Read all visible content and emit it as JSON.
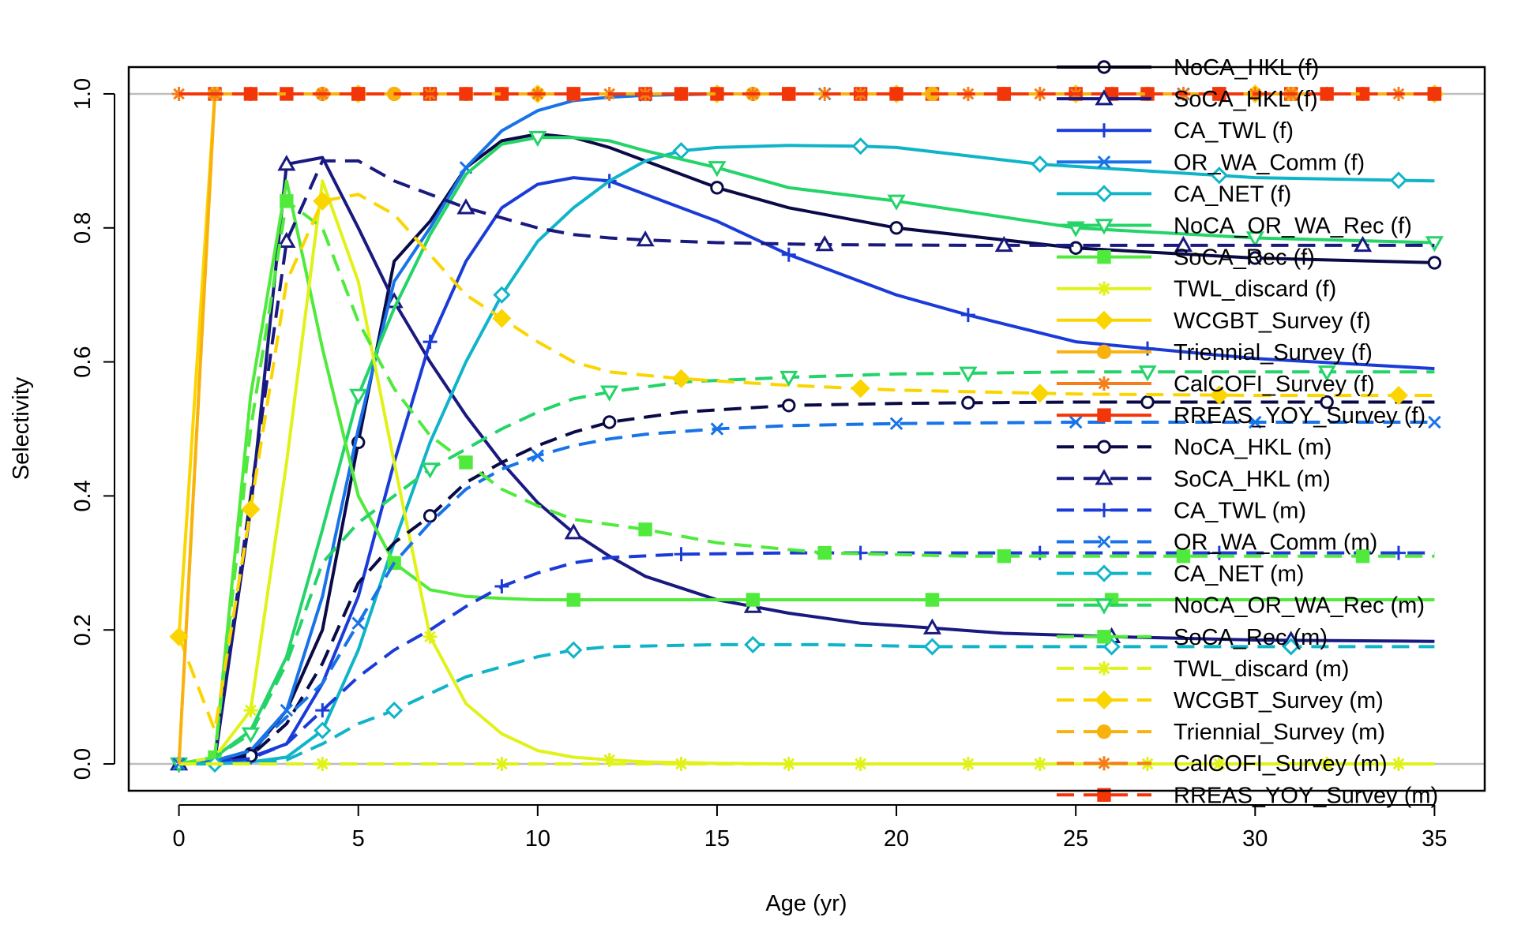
{
  "chart_data": {
    "type": "line",
    "xlabel": "Age (yr)",
    "ylabel": "Selectivity",
    "xlim": [
      -1.4,
      36.4
    ],
    "ylim": [
      -0.04,
      1.04
    ],
    "x_ticks": [
      0,
      5,
      10,
      15,
      20,
      25,
      30,
      35
    ],
    "y_ticks": [
      0.0,
      0.2,
      0.4,
      0.6,
      0.8,
      1.0
    ],
    "reference_lines": [
      0,
      1
    ],
    "legend_position": "top-right",
    "series": [
      {
        "name": "NoCA_HKL (f)",
        "color": "#0a0a46",
        "dash": false,
        "marker": "circle-open",
        "x": [
          0,
          1,
          2,
          3,
          4,
          5,
          6,
          7,
          8,
          9,
          10,
          11,
          12,
          13,
          15,
          17,
          20,
          25,
          30,
          35
        ],
        "y": [
          0,
          0.005,
          0.015,
          0.08,
          0.2,
          0.48,
          0.75,
          0.81,
          0.89,
          0.93,
          0.94,
          0.935,
          0.92,
          0.9,
          0.86,
          0.83,
          0.8,
          0.77,
          0.755,
          0.748
        ],
        "markers_at": [
          2,
          5,
          15,
          20,
          25,
          30,
          35
        ]
      },
      {
        "name": "SoCA_HKL (f)",
        "color": "#191980",
        "dash": false,
        "marker": "triangle-open",
        "x": [
          0,
          1,
          2,
          3,
          4,
          5,
          6,
          7,
          8,
          9,
          10,
          11,
          12,
          13,
          15,
          17,
          19,
          21,
          23,
          26,
          30,
          35
        ],
        "y": [
          0,
          0.005,
          0.38,
          0.895,
          0.905,
          0.8,
          0.69,
          0.6,
          0.52,
          0.45,
          0.39,
          0.345,
          0.31,
          0.28,
          0.245,
          0.225,
          0.21,
          0.203,
          0.195,
          0.19,
          0.185,
          0.183
        ],
        "markers_at": [
          0,
          3,
          6,
          11,
          16,
          21,
          26,
          31
        ]
      },
      {
        "name": "CA_TWL (f)",
        "color": "#1a3bd8",
        "dash": false,
        "marker": "plus",
        "x": [
          0,
          1,
          2,
          3,
          4,
          5,
          6,
          7,
          8,
          9,
          10,
          11,
          12,
          13,
          15,
          17,
          20,
          22,
          25,
          30,
          35
        ],
        "y": [
          0,
          0.003,
          0.01,
          0.03,
          0.12,
          0.25,
          0.45,
          0.63,
          0.75,
          0.83,
          0.865,
          0.875,
          0.87,
          0.85,
          0.81,
          0.76,
          0.7,
          0.67,
          0.63,
          0.605,
          0.59
        ],
        "markers_at": [
          2,
          7,
          12,
          17,
          22,
          27
        ]
      },
      {
        "name": "OR_WA_Comm (f)",
        "color": "#1873e8",
        "dash": false,
        "marker": "cross",
        "x": [
          0,
          1,
          2,
          3,
          4,
          5,
          6,
          7,
          8,
          9,
          10,
          11,
          12,
          13,
          15,
          17,
          20,
          25,
          30,
          35
        ],
        "y": [
          0,
          0.005,
          0.02,
          0.08,
          0.25,
          0.5,
          0.72,
          0.8,
          0.89,
          0.945,
          0.975,
          0.99,
          0.995,
          0.998,
          1,
          1,
          1,
          1,
          1,
          1
        ],
        "markers_at": [
          0,
          3,
          8,
          13,
          18,
          23,
          28,
          33
        ]
      },
      {
        "name": "CA_NET (f)",
        "color": "#10b4c9",
        "dash": false,
        "marker": "diamond-open",
        "x": [
          0,
          1,
          2,
          3,
          4,
          5,
          6,
          7,
          8,
          9,
          10,
          11,
          12,
          13,
          14,
          15,
          17,
          19,
          20,
          24,
          30,
          35
        ],
        "y": [
          0,
          0,
          0.003,
          0.01,
          0.05,
          0.17,
          0.33,
          0.48,
          0.6,
          0.7,
          0.78,
          0.83,
          0.87,
          0.9,
          0.915,
          0.92,
          0.923,
          0.922,
          0.92,
          0.895,
          0.875,
          0.87
        ],
        "markers_at": [
          4,
          9,
          14,
          19,
          24,
          29,
          34
        ]
      },
      {
        "name": "NoCA_OR_WA_Rec (f)",
        "color": "#24d468",
        "dash": false,
        "marker": "triangle-down-open",
        "x": [
          0,
          1,
          2,
          3,
          4,
          5,
          6,
          7,
          8,
          9,
          10,
          11,
          12,
          13,
          15,
          17,
          20,
          25,
          30,
          35
        ],
        "y": [
          0,
          0.01,
          0.05,
          0.16,
          0.35,
          0.55,
          0.68,
          0.79,
          0.88,
          0.925,
          0.935,
          0.935,
          0.93,
          0.915,
          0.89,
          0.86,
          0.84,
          0.8,
          0.785,
          0.778
        ],
        "markers_at": [
          0,
          5,
          10,
          15,
          20,
          25,
          30,
          35
        ]
      },
      {
        "name": "SoCA_Rec (f)",
        "color": "#50ea3c",
        "dash": false,
        "marker": "square",
        "x": [
          0,
          1,
          2,
          3,
          4,
          5,
          6,
          7,
          8,
          9,
          10,
          11,
          15,
          20,
          25,
          30,
          35
        ],
        "y": [
          0,
          0.01,
          0.55,
          0.87,
          0.62,
          0.4,
          0.3,
          0.26,
          0.25,
          0.247,
          0.245,
          0.245,
          0.245,
          0.245,
          0.245,
          0.245,
          0.245
        ],
        "markers_at": [
          1,
          6,
          11,
          16,
          21,
          26
        ]
      },
      {
        "name": "TWL_discard (f)",
        "color": "#e0f218",
        "dash": false,
        "marker": "asterisk",
        "x": [
          0,
          1,
          2,
          3,
          4,
          5,
          6,
          7,
          8,
          9,
          10,
          11,
          12,
          13,
          15,
          17,
          20,
          25,
          30,
          35
        ],
        "y": [
          0,
          0.01,
          0.08,
          0.45,
          0.87,
          0.72,
          0.45,
          0.19,
          0.09,
          0.045,
          0.02,
          0.01,
          0.006,
          0.003,
          0.001,
          0,
          0,
          0,
          0,
          0
        ],
        "markers_at": [
          2,
          7,
          12,
          17,
          22,
          27,
          32
        ]
      },
      {
        "name": "WCGBT_Survey (f)",
        "color": "#fbd500",
        "dash": false,
        "marker": "diamond",
        "x": [
          0,
          1,
          35
        ],
        "y": [
          0.19,
          1,
          1
        ],
        "markers_at": [
          0,
          5,
          10,
          15,
          20,
          25,
          30,
          35
        ]
      },
      {
        "name": "Triennial_Survey (f)",
        "color": "#f9b10e",
        "dash": false,
        "marker": "circle",
        "x": [
          0,
          1,
          35
        ],
        "y": [
          0,
          1,
          1
        ],
        "markers_at": [
          1,
          4,
          7,
          9,
          11,
          13,
          15,
          17,
          19,
          21,
          23,
          25,
          27,
          29,
          31,
          33
        ]
      },
      {
        "name": "CalCOFI_Survey (f)",
        "color": "#f57e1a",
        "dash": false,
        "marker": "star",
        "x": [
          0,
          1,
          35
        ],
        "y": [
          1,
          1,
          1
        ],
        "markers_at": [
          0,
          2,
          4,
          6,
          8,
          10,
          12,
          14,
          16,
          18,
          20,
          22,
          24,
          26,
          28,
          30,
          32,
          34
        ]
      },
      {
        "name": "RREAS_YOY_Survey (f)",
        "color": "#f2360a",
        "dash": false,
        "marker": "square",
        "x": [
          0,
          1,
          35
        ],
        "y": [
          1,
          1,
          1
        ],
        "markers_at": [
          1,
          3,
          5,
          7,
          9,
          11,
          13,
          15,
          17,
          19,
          21,
          23,
          25,
          27,
          29,
          31,
          33,
          35
        ]
      },
      {
        "name": "NoCA_HKL (m)",
        "color": "#0a0a46",
        "dash": true,
        "marker": "circle-open",
        "x": [
          0,
          1,
          2,
          3,
          4,
          5,
          6,
          7,
          8,
          9,
          10,
          11,
          12,
          14,
          17,
          20,
          22,
          25,
          30,
          35
        ],
        "y": [
          0,
          0.004,
          0.012,
          0.06,
          0.15,
          0.27,
          0.33,
          0.37,
          0.42,
          0.45,
          0.475,
          0.495,
          0.51,
          0.525,
          0.535,
          0.538,
          0.539,
          0.54,
          0.54,
          0.54
        ],
        "markers_at": [
          2,
          7,
          12,
          17,
          22,
          27,
          32
        ]
      },
      {
        "name": "SoCA_HKL (m)",
        "color": "#191980",
        "dash": true,
        "marker": "triangle-open",
        "x": [
          0,
          1,
          2,
          3,
          4,
          5,
          6,
          7,
          8,
          9,
          10,
          11,
          12,
          13,
          15,
          18,
          22,
          25,
          30,
          35
        ],
        "y": [
          0,
          0.005,
          0.4,
          0.78,
          0.9,
          0.9,
          0.87,
          0.85,
          0.83,
          0.815,
          0.8,
          0.79,
          0.785,
          0.782,
          0.778,
          0.775,
          0.774,
          0.774,
          0.774,
          0.774
        ],
        "markers_at": [
          3,
          8,
          13,
          18,
          23,
          28,
          33
        ]
      },
      {
        "name": "CA_TWL (m)",
        "color": "#1a3bd8",
        "dash": true,
        "marker": "plus",
        "x": [
          0,
          1,
          2,
          3,
          4,
          5,
          6,
          7,
          8,
          9,
          10,
          11,
          12,
          14,
          17,
          20,
          25,
          30,
          35
        ],
        "y": [
          0,
          0.002,
          0.008,
          0.03,
          0.08,
          0.13,
          0.17,
          0.2,
          0.235,
          0.265,
          0.285,
          0.3,
          0.308,
          0.313,
          0.315,
          0.315,
          0.315,
          0.315,
          0.315
        ],
        "markers_at": [
          4,
          9,
          14,
          19,
          24,
          29,
          34
        ]
      },
      {
        "name": "OR_WA_Comm (m)",
        "color": "#1873e8",
        "dash": true,
        "marker": "cross",
        "x": [
          0,
          1,
          2,
          3,
          4,
          5,
          6,
          7,
          8,
          9,
          10,
          11,
          12,
          13,
          15,
          17,
          20,
          25,
          30,
          35
        ],
        "y": [
          0,
          0.004,
          0.02,
          0.07,
          0.12,
          0.21,
          0.3,
          0.36,
          0.41,
          0.44,
          0.46,
          0.475,
          0.485,
          0.492,
          0.5,
          0.505,
          0.508,
          0.51,
          0.51,
          0.51
        ],
        "markers_at": [
          0,
          5,
          10,
          15,
          20,
          25,
          30,
          35
        ]
      },
      {
        "name": "CA_NET (m)",
        "color": "#10b4c9",
        "dash": true,
        "marker": "diamond-open",
        "x": [
          0,
          1,
          2,
          3,
          4,
          5,
          6,
          7,
          8,
          9,
          10,
          11,
          12,
          13,
          15,
          18,
          21,
          25,
          30,
          35
        ],
        "y": [
          0,
          0,
          0.002,
          0.006,
          0.03,
          0.06,
          0.08,
          0.105,
          0.13,
          0.145,
          0.16,
          0.17,
          0.175,
          0.176,
          0.178,
          0.178,
          0.175,
          0.175,
          0.175,
          0.175
        ],
        "markers_at": [
          1,
          6,
          11,
          16,
          21,
          26,
          31
        ]
      },
      {
        "name": "NoCA_OR_WA_Rec (m)",
        "color": "#24d468",
        "dash": true,
        "marker": "triangle-down-open",
        "x": [
          0,
          1,
          2,
          3,
          4,
          5,
          6,
          7,
          8,
          9,
          10,
          11,
          12,
          14,
          17,
          20,
          25,
          30,
          35
        ],
        "y": [
          0,
          0.01,
          0.045,
          0.15,
          0.3,
          0.36,
          0.4,
          0.44,
          0.47,
          0.5,
          0.525,
          0.545,
          0.555,
          0.57,
          0.577,
          0.582,
          0.585,
          0.585,
          0.585
        ],
        "markers_at": [
          2,
          7,
          12,
          17,
          22,
          27,
          32
        ]
      },
      {
        "name": "SoCA_Rec (m)",
        "color": "#50ea3c",
        "dash": true,
        "marker": "square",
        "x": [
          0,
          1,
          2,
          3,
          4,
          5,
          6,
          7,
          8,
          9,
          10,
          11,
          13,
          15,
          18,
          22,
          25,
          30,
          35
        ],
        "y": [
          0,
          0.01,
          0.5,
          0.84,
          0.8,
          0.66,
          0.56,
          0.49,
          0.45,
          0.41,
          0.385,
          0.365,
          0.35,
          0.33,
          0.315,
          0.31,
          0.31,
          0.31,
          0.31
        ],
        "markers_at": [
          3,
          8,
          13,
          18,
          23,
          28,
          33
        ]
      },
      {
        "name": "TWL_discard (m)",
        "color": "#e0f218",
        "dash": true,
        "marker": "asterisk",
        "x": [
          0,
          1,
          35
        ],
        "y": [
          0,
          0,
          0
        ],
        "markers_at": [
          4,
          9,
          14,
          19,
          24,
          29,
          34
        ]
      },
      {
        "name": "WCGBT_Survey (m)",
        "color": "#fbd500",
        "dash": true,
        "marker": "diamond",
        "x": [
          0,
          1,
          2,
          3,
          4,
          5,
          6,
          7,
          8,
          9,
          10,
          11,
          12,
          14,
          17,
          20,
          25,
          30,
          35
        ],
        "y": [
          0.19,
          0.05,
          0.38,
          0.72,
          0.84,
          0.85,
          0.82,
          0.76,
          0.7,
          0.665,
          0.63,
          0.6,
          0.585,
          0.575,
          0.565,
          0.558,
          0.552,
          0.55,
          0.55
        ],
        "markers_at": [
          0,
          2,
          4,
          9,
          14,
          19,
          24,
          29,
          34
        ]
      },
      {
        "name": "Triennial_Survey (m)",
        "color": "#f9b10e",
        "dash": true,
        "marker": "circle",
        "x": [
          0,
          1,
          35
        ],
        "y": [
          0,
          1,
          1
        ],
        "markers_at": [
          1,
          6,
          11,
          16,
          21,
          26,
          31
        ]
      },
      {
        "name": "CalCOFI_Survey (m)",
        "color": "#f57e1a",
        "dash": true,
        "marker": "star",
        "x": [
          0,
          1,
          35
        ],
        "y": [
          1,
          1,
          1
        ],
        "markers_at": [
          1,
          4,
          7,
          10,
          13,
          16,
          19,
          22,
          25,
          28,
          31
        ]
      },
      {
        "name": "RREAS_YOY_Survey (m)",
        "color": "#f2360a",
        "dash": true,
        "marker": "square",
        "x": [
          0,
          1,
          35
        ],
        "y": [
          1,
          1,
          1
        ],
        "markers_at": [
          2,
          5,
          8,
          11,
          14,
          17,
          20,
          23,
          26,
          29,
          32,
          35
        ]
      }
    ]
  }
}
